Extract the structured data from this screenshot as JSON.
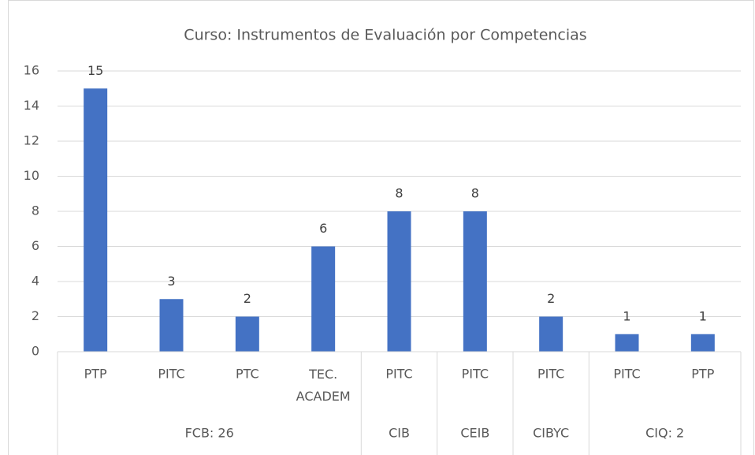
{
  "chart_data": {
    "type": "bar",
    "title": "Curso: Instrumentos de Evaluación por Competencias",
    "color": "#4472c4",
    "ylim": [
      0,
      16
    ],
    "yticks": [
      0,
      2,
      4,
      6,
      8,
      10,
      12,
      14,
      16
    ],
    "grid": true,
    "groups": [
      {
        "label": "FCB: 26",
        "categories": [
          "PTP",
          "PITC",
          "PTC",
          "TEC. ACADEM"
        ],
        "values": [
          15,
          3,
          2,
          6
        ]
      },
      {
        "label": "CIB",
        "categories": [
          "PITC"
        ],
        "values": [
          8
        ]
      },
      {
        "label": "CEIB",
        "categories": [
          "PITC"
        ],
        "values": [
          8
        ]
      },
      {
        "label": "CIBYC",
        "categories": [
          "PITC"
        ],
        "values": [
          2
        ]
      },
      {
        "label": "CIQ: 2",
        "categories": [
          "PITC",
          "PTP"
        ],
        "values": [
          1,
          1
        ]
      }
    ]
  }
}
